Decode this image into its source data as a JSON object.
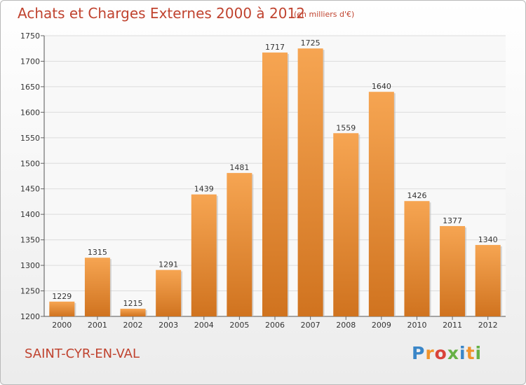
{
  "header": {
    "title": "Achats et Charges Externes 2000 à 2012",
    "unit_note": "(en milliers d'€)"
  },
  "footer": {
    "commune": "SAINT-CYR-EN-VAL",
    "logo_text": "Proxiti"
  },
  "colors": {
    "title": "#c0432f",
    "bar_top": "#f6a552",
    "bar_bottom": "#d0731f",
    "logo": [
      "#3a86c8",
      "#f0932b",
      "#d9443a",
      "#66b145",
      "#3a86c8",
      "#f0932b",
      "#66b145"
    ]
  },
  "chart_data": {
    "type": "bar",
    "title": "Achats et Charges Externes 2000 à 2012",
    "subtitle": "(en milliers d'€)",
    "xlabel": "",
    "ylabel": "",
    "categories": [
      "2000",
      "2001",
      "2002",
      "2003",
      "2004",
      "2005",
      "2006",
      "2007",
      "2008",
      "2009",
      "2010",
      "2011",
      "2012"
    ],
    "values": [
      1229,
      1315,
      1215,
      1291,
      1439,
      1481,
      1717,
      1725,
      1559,
      1640,
      1426,
      1377,
      1340
    ],
    "ylim": [
      1200,
      1750
    ],
    "yticks": [
      1200,
      1250,
      1300,
      1350,
      1400,
      1450,
      1500,
      1550,
      1600,
      1650,
      1700,
      1750
    ],
    "grid": true,
    "legend": "none"
  }
}
